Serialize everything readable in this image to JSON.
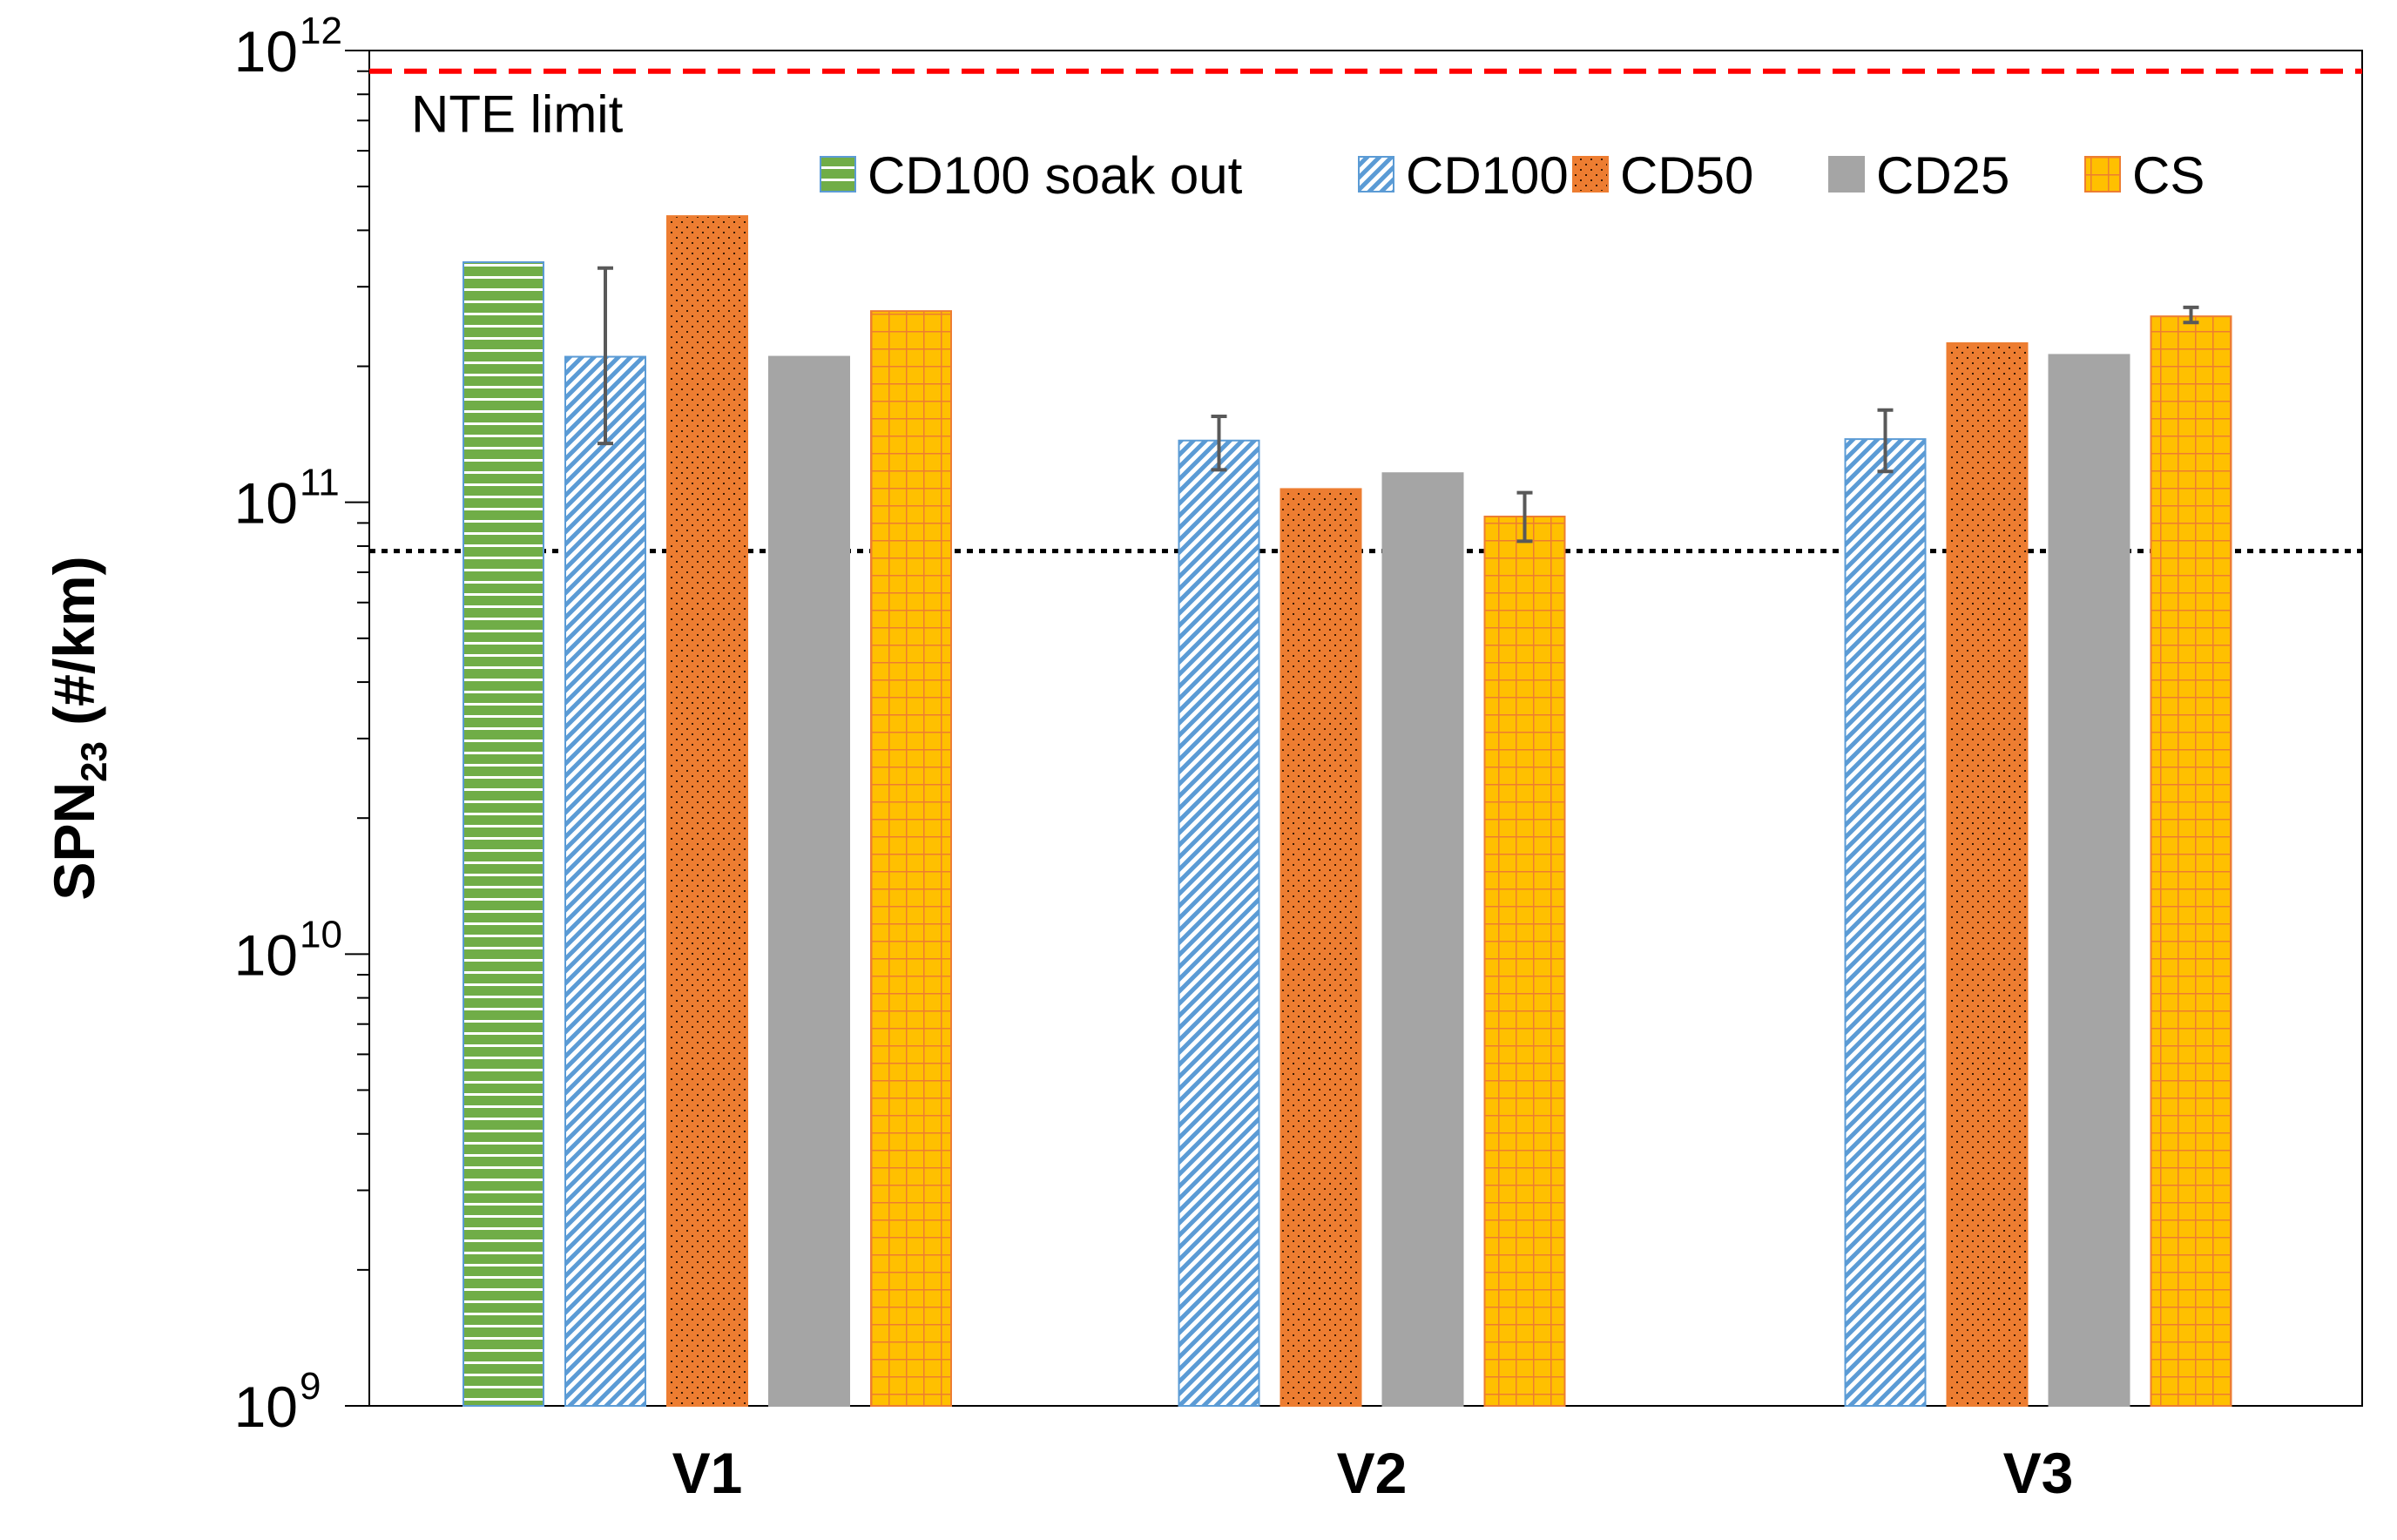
{
  "chart_data": {
    "type": "bar",
    "title": "",
    "xlabel": "",
    "ylabel": {
      "main": "SPN",
      "sub": "23",
      "unit": " (#/km)"
    },
    "yscale": "log",
    "ylim": [
      1000000000,
      1000000000000
    ],
    "yticks": [
      {
        "base": "10",
        "exp": "9",
        "value": 1000000000
      },
      {
        "base": "10",
        "exp": "10",
        "value": 10000000000
      },
      {
        "base": "10",
        "exp": "11",
        "value": 100000000000
      },
      {
        "base": "10",
        "exp": "12",
        "value": 1000000000000
      }
    ],
    "categories": [
      "V1",
      "V2",
      "V3"
    ],
    "series": [
      {
        "name": "CD100 soak out",
        "pattern": "hstripe",
        "fill": "#70AD47",
        "stroke": "#5B9BD5",
        "values": [
          340000000000,
          null,
          null
        ],
        "err_low": [
          null,
          null,
          null
        ],
        "err_high": [
          null,
          null,
          null
        ]
      },
      {
        "name": "CD100",
        "pattern": "diag",
        "fill": "#5B9BD5",
        "stroke": "#5B9BD5",
        "values": [
          210000000000,
          137000000000,
          138000000000
        ],
        "err_low": [
          135000000000,
          118000000000,
          117000000000
        ],
        "err_high": [
          330000000000,
          155000000000,
          160000000000
        ]
      },
      {
        "name": "CD50",
        "pattern": "dots",
        "fill": "#ED7D31",
        "stroke": "#ED7D31",
        "values": [
          430000000000,
          107000000000,
          225000000000
        ],
        "err_low": [
          null,
          null,
          null
        ],
        "err_high": [
          null,
          null,
          null
        ]
      },
      {
        "name": "CD25",
        "pattern": "solid",
        "fill": "#A5A5A5",
        "stroke": "#A5A5A5",
        "values": [
          210000000000,
          116000000000,
          212000000000
        ],
        "err_low": [
          null,
          null,
          null
        ],
        "err_high": [
          null,
          null,
          null
        ]
      },
      {
        "name": "CS",
        "pattern": "grid",
        "fill": "#FFC000",
        "stroke": "#ED7D31",
        "values": [
          265000000000,
          93000000000,
          258000000000
        ],
        "err_low": [
          null,
          82000000000,
          250000000000
        ],
        "err_high": [
          null,
          105000000000,
          270000000000
        ]
      }
    ],
    "reference_lines": [
      {
        "label": "NTE limit",
        "value": 900000000000,
        "color": "#FF0000",
        "style": "dashed"
      },
      {
        "label": "",
        "value": 78000000000,
        "color": "#000000",
        "style": "dotted"
      }
    ],
    "legend_position": "top-right",
    "grid": false
  }
}
